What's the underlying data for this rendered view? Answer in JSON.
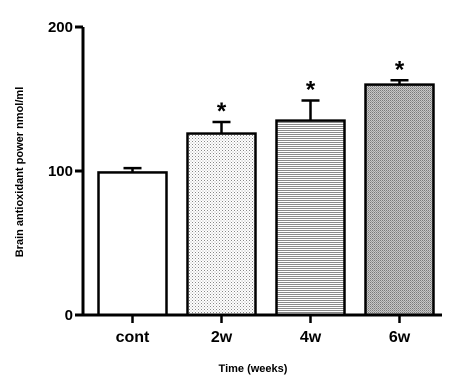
{
  "chart_data": {
    "type": "bar",
    "title": "",
    "xlabel": "Time (weeks)",
    "ylabel": "Brain antioxidant power nmol/ml",
    "categories": [
      "cont",
      "2w",
      "4w",
      "6w"
    ],
    "values": [
      99,
      126,
      135,
      160
    ],
    "error": [
      3,
      8,
      14,
      3
    ],
    "significance": [
      "",
      "*",
      "*",
      "*"
    ],
    "ylim": [
      0,
      200
    ],
    "yticks": [
      "0",
      "100",
      "200"
    ],
    "grid": false,
    "legend": "none",
    "bar_fills": [
      "white",
      "dots",
      "h-lines",
      "dense-dots"
    ]
  }
}
